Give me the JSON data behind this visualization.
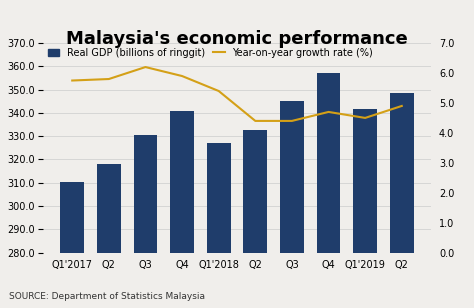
{
  "title": "Malaysia's economic performance",
  "categories": [
    "Q1'2017",
    "Q2",
    "Q3",
    "Q4",
    "Q1'2018",
    "Q2",
    "Q3",
    "Q4",
    "Q1'2019",
    "Q2"
  ],
  "gdp_values": [
    310.5,
    318.0,
    330.5,
    341.0,
    327.0,
    332.5,
    345.0,
    357.0,
    341.5,
    348.5
  ],
  "growth_values": [
    5.75,
    5.8,
    6.2,
    5.9,
    5.4,
    4.4,
    4.4,
    4.7,
    4.5,
    4.9
  ],
  "bar_color": "#1f3d6b",
  "line_color": "#d4a017",
  "bg_color": "#f0eeeb",
  "header_color": "#1a2744",
  "ylim_left": [
    280.0,
    370.0
  ],
  "yticks_left": [
    280.0,
    290.0,
    300.0,
    310.0,
    320.0,
    330.0,
    340.0,
    350.0,
    360.0,
    370.0
  ],
  "ylim_right": [
    0.0,
    7.0
  ],
  "yticks_right": [
    0.0,
    1.0,
    2.0,
    3.0,
    4.0,
    5.0,
    6.0,
    7.0
  ],
  "legend_bar_label": "Real GDP (billions of ringgit)",
  "legend_line_label": "Year-on-year growth rate (%)",
  "source_text": "SOURCE: Department of Statistics Malaysia",
  "title_fontsize": 13,
  "tick_fontsize": 7,
  "legend_fontsize": 7,
  "source_fontsize": 6.5
}
